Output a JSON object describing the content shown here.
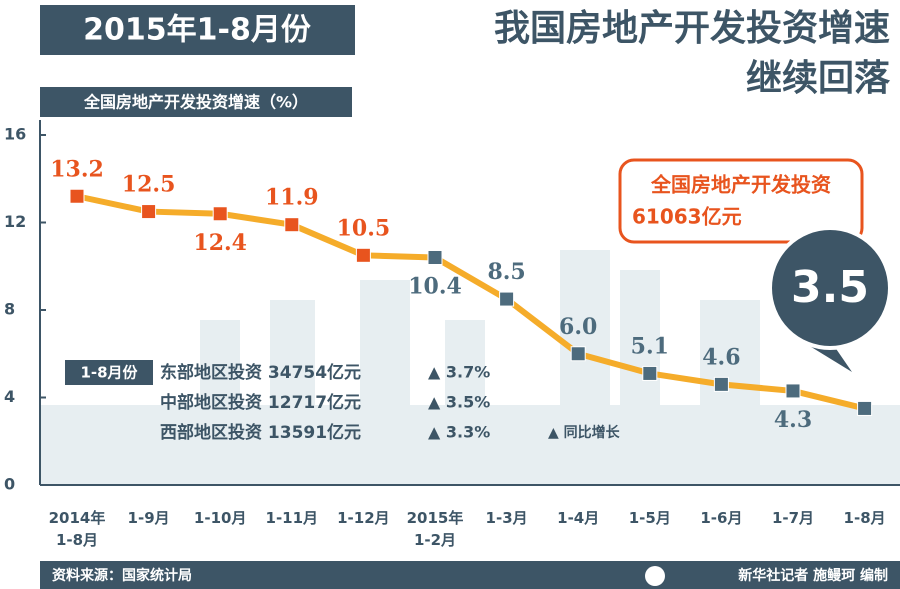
{
  "header": {
    "badge": "2015年1-8月份",
    "title_line1": "我国房地产开发投资增速",
    "title_line2": "继续回落"
  },
  "chart_data": {
    "type": "line",
    "title": "全国房地产开发投资增速（%）",
    "categories": [
      "2014年\n1-8月",
      "1-9月",
      "1-10月",
      "1-11月",
      "1-12月",
      "2015年\n1-2月",
      "1-3月",
      "1-4月",
      "1-5月",
      "1-6月",
      "1-7月",
      "1-8月"
    ],
    "series": [
      {
        "color": "#f5ac2a",
        "values": [
          13.2,
          12.5,
          12.4,
          11.9,
          10.5,
          10.4,
          8.5,
          6.0,
          5.1,
          4.6,
          4.3,
          3.5
        ],
        "value_labels": [
          "13.2",
          "12.5",
          "12.4",
          "11.9",
          "10.5",
          "10.4",
          "8.5",
          "6.0",
          "5.1",
          "4.6",
          "4.3",
          "3.5"
        ],
        "point_colors": [
          "#e8541e",
          "#e8541e",
          "#e8541e",
          "#e8541e",
          "#e8541e",
          "#4d6b7d",
          "#4d6b7d",
          "#4d6b7d",
          "#4d6b7d",
          "#4d6b7d",
          "#4d6b7d",
          "#4d6b7d"
        ]
      }
    ],
    "ylim": [
      0,
      16
    ],
    "yticks": [
      0,
      4,
      8,
      12,
      16
    ],
    "grid": false
  },
  "callout": {
    "line1": "全国房地产开发投资",
    "line2": "61063亿元"
  },
  "regions": {
    "label": "1-8月份",
    "rows": [
      {
        "text": "东部地区投资 34754亿元",
        "growth": "▲ 3.7%"
      },
      {
        "text": "中部地区投资 12717亿元",
        "growth": "▲ 3.5%"
      },
      {
        "text": "西部地区投资 13591亿元",
        "growth": "▲ 3.3%"
      }
    ],
    "note": "▲ 同比增长"
  },
  "footer": {
    "source": "资料来源：国家统计局",
    "credit": "新华社记者 施鳗珂 编制"
  }
}
